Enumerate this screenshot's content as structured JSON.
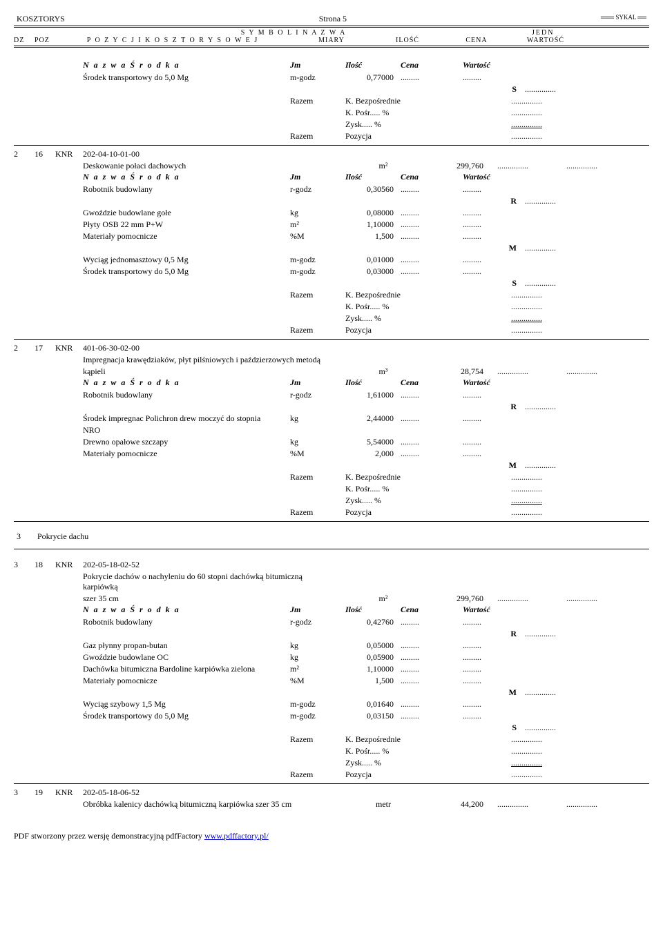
{
  "header": {
    "title": "KOSZTORYS",
    "page": "Strona 5",
    "brand": "SYKAL",
    "line1_center": "S Y M B O L  I  N A Z W A",
    "line1_right": "JEDN",
    "dz": "DZ",
    "poz": "POZ",
    "line2_center": "P O Z Y C J I  K O S Z T O R Y S O W E J",
    "miary": "MIARY",
    "ilosc": "ILOŚĆ",
    "cena": "CENA",
    "wartosc": "WARTOŚĆ"
  },
  "sub_header": {
    "nazwa": "N a z w a  Ś r o d k a",
    "jm": "Jm",
    "ilosc": "Ilość",
    "cena": "Cena",
    "wartosc": "Wartość"
  },
  "dots": ".........",
  "dots_long": "...............",
  "block0": {
    "rows": [
      {
        "name": "Środek transportowy do 5,0 Mg",
        "jm": "m-godz",
        "qty": "0,77000"
      }
    ],
    "rms": [
      {
        "label": "S"
      }
    ],
    "razem": [
      {
        "left": "Razem",
        "mid": "K. Bezpośrednie"
      },
      {
        "left": "",
        "mid": "K. Pośr..... %"
      },
      {
        "left": "",
        "mid": "Zysk..... %",
        "underline": true
      },
      {
        "left": "Razem",
        "mid": "Pozycja"
      }
    ]
  },
  "item16": {
    "dz": "2",
    "poz": "16",
    "knr": "KNR",
    "code": "202-04-10-01-00",
    "desc": "Deskowanie połaci dachowych",
    "jm": "m²",
    "qty": "299,760",
    "rows": [
      {
        "name": "Robotnik budowlany",
        "jm": "r-godz",
        "qty": "0,30560"
      }
    ],
    "rms1": [
      {
        "label": "R"
      }
    ],
    "rows2": [
      {
        "name": "Gwoździe budowlane gołe",
        "jm": "kg",
        "qty": "0,08000"
      },
      {
        "name": "Płyty OSB 22 mm P+W",
        "jm": "m²",
        "qty": "1,10000"
      },
      {
        "name": "Materiały pomocnicze",
        "jm": "%M",
        "qty": "1,500"
      }
    ],
    "rms2": [
      {
        "label": "M"
      }
    ],
    "rows3": [
      {
        "name": "Wyciąg jednomasztowy 0,5 Mg",
        "jm": "m-godz",
        "qty": "0,01000"
      },
      {
        "name": "Środek transportowy do 5,0 Mg",
        "jm": "m-godz",
        "qty": "0,03000"
      }
    ],
    "rms3": [
      {
        "label": "S"
      }
    ],
    "razem": [
      {
        "left": "Razem",
        "mid": "K. Bezpośrednie"
      },
      {
        "left": "",
        "mid": "K. Pośr..... %"
      },
      {
        "left": "",
        "mid": "Zysk..... %",
        "underline": true
      },
      {
        "left": "Razem",
        "mid": "Pozycja"
      }
    ]
  },
  "item17": {
    "dz": "2",
    "poz": "17",
    "knr": "KNR",
    "code": "401-06-30-02-00",
    "desc1": "Impregnacja krawędziaków, płyt pilśniowych i paździerzowych metodą",
    "desc2": "kąpieli",
    "jm": "m³",
    "qty": "28,754",
    "rows": [
      {
        "name": "Robotnik budowlany",
        "jm": "r-godz",
        "qty": "1,61000"
      }
    ],
    "rms1": [
      {
        "label": "R"
      }
    ],
    "rows2": [
      {
        "name": "Środek impregnac Polichron drew moczyć do stopnia",
        "jm": "kg",
        "qty": "2,44000"
      },
      {
        "name": "NRO",
        "jm": "",
        "qty": ""
      },
      {
        "name": "Drewno opałowe szczapy",
        "jm": "kg",
        "qty": "5,54000"
      },
      {
        "name": "Materiały pomocnicze",
        "jm": "%M",
        "qty": "2,000"
      }
    ],
    "rms2": [
      {
        "label": "M"
      }
    ],
    "razem": [
      {
        "left": "Razem",
        "mid": "K. Bezpośrednie"
      },
      {
        "left": "",
        "mid": "K. Pośr..... %"
      },
      {
        "left": "",
        "mid": "Zysk..... %",
        "underline": true
      },
      {
        "left": "Razem",
        "mid": "Pozycja"
      }
    ]
  },
  "chapter3": {
    "dz": "3",
    "title": "Pokrycie dachu"
  },
  "item18": {
    "dz": "3",
    "poz": "18",
    "knr": "KNR",
    "code": "202-05-18-02-52",
    "desc1": "Pokrycie dachów o nachyleniu do 60 stopni dachówką bitumiczną karpiówką",
    "desc2": "szer 35 cm",
    "jm": "m²",
    "qty": "299,760",
    "rows": [
      {
        "name": "Robotnik budowlany",
        "jm": "r-godz",
        "qty": "0,42760"
      }
    ],
    "rms1": [
      {
        "label": "R"
      }
    ],
    "rows2": [
      {
        "name": "Gaz płynny propan-butan",
        "jm": "kg",
        "qty": "0,05000"
      },
      {
        "name": "Gwoździe budowlane OC",
        "jm": "kg",
        "qty": "0,05900"
      },
      {
        "name": "Dachówka bitumiczna Bardoline karpiówka zielona",
        "jm": "m²",
        "qty": "1,10000"
      },
      {
        "name": "Materiały pomocnicze",
        "jm": "%M",
        "qty": "1,500"
      }
    ],
    "rms2": [
      {
        "label": "M"
      }
    ],
    "rows3": [
      {
        "name": "Wyciąg szybowy 1,5 Mg",
        "jm": "m-godz",
        "qty": "0,01640"
      },
      {
        "name": "Środek transportowy do 5,0 Mg",
        "jm": "m-godz",
        "qty": "0,03150"
      }
    ],
    "rms3": [
      {
        "label": "S"
      }
    ],
    "razem": [
      {
        "left": "Razem",
        "mid": "K. Bezpośrednie"
      },
      {
        "left": "",
        "mid": "K. Pośr..... %"
      },
      {
        "left": "",
        "mid": "Zysk..... %",
        "underline": true
      },
      {
        "left": "Razem",
        "mid": "Pozycja"
      }
    ]
  },
  "item19": {
    "dz": "3",
    "poz": "19",
    "knr": "KNR",
    "code": "202-05-18-06-52",
    "desc": "Obróbka kalenicy dachówką bitumiczną karpiówka szer 35 cm",
    "jm": "metr",
    "qty": "44,200"
  },
  "footer": {
    "text": "PDF stworzony przez wersję demonstracyjną pdfFactory ",
    "link": "www.pdffactory.pl/"
  }
}
